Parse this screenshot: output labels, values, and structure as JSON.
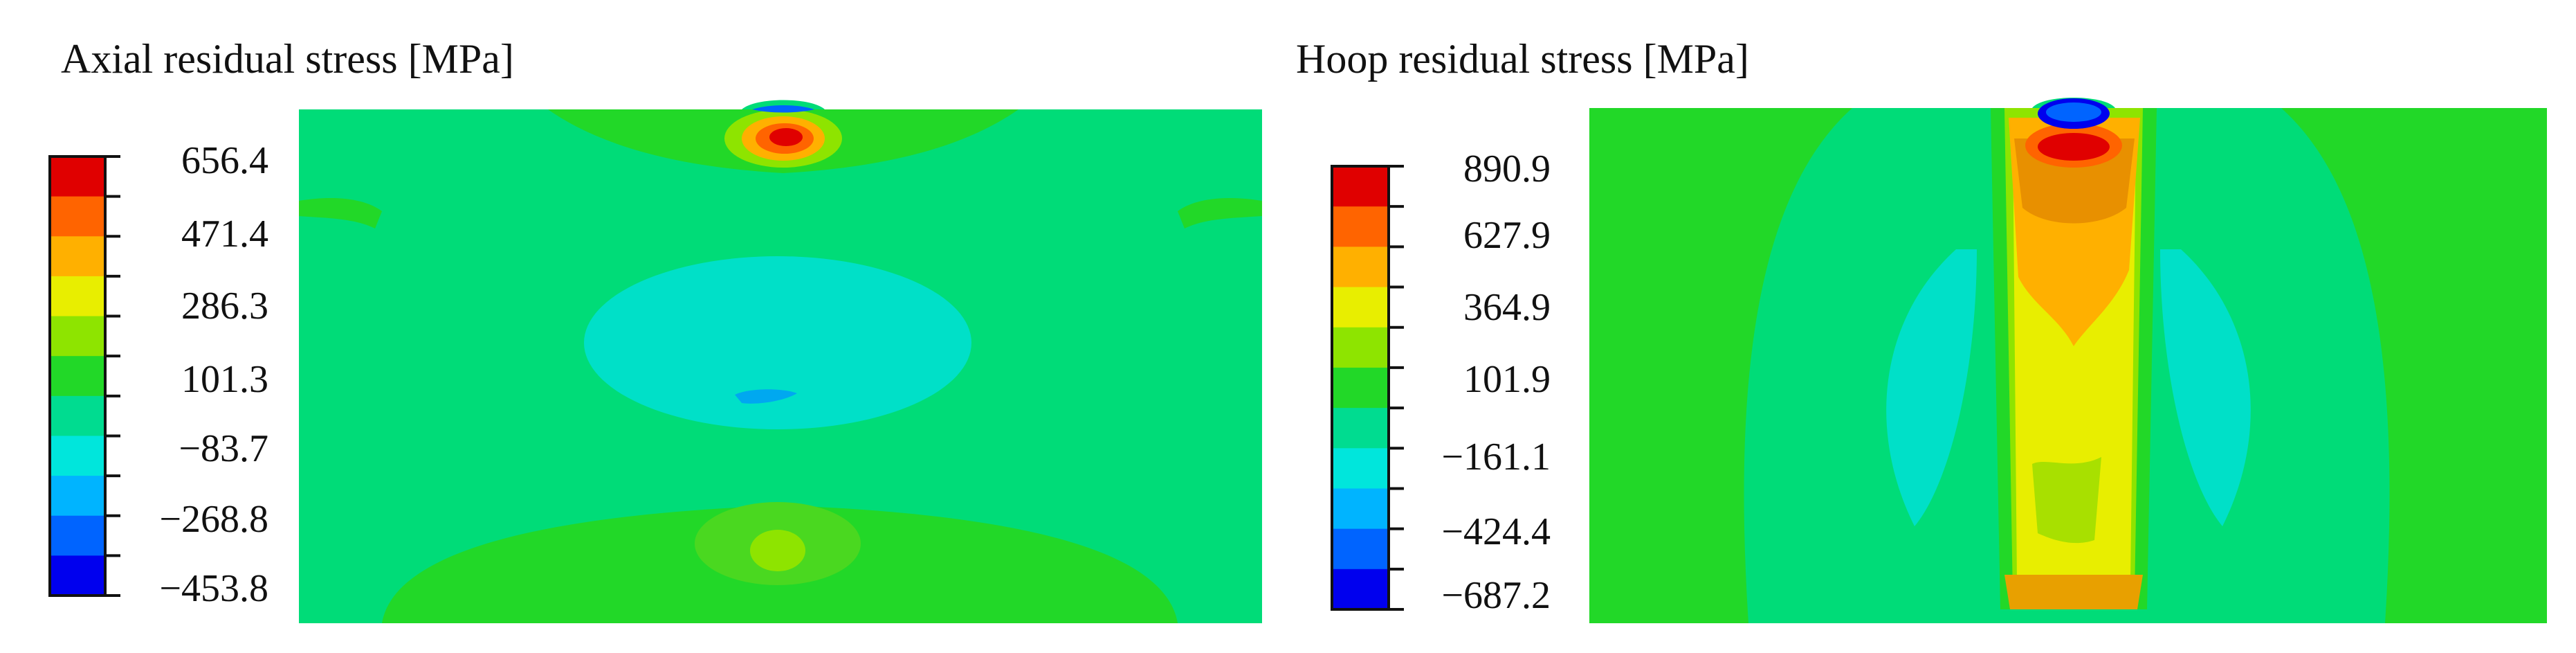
{
  "panels": [
    {
      "title": "Axial residual stress [MPa]",
      "legend_values": [
        "656.4",
        "471.4",
        "286.3",
        "101.3",
        "−83.7",
        "−268.8",
        "−453.8"
      ]
    },
    {
      "title": "Hoop residual stress [MPa]",
      "legend_values": [
        "890.9",
        "627.9",
        "364.9",
        "101.9",
        "−161.1",
        "−424.4",
        "−687.2"
      ]
    }
  ],
  "colormap": [
    "#e00000",
    "#ff6400",
    "#ffb000",
    "#e8ee00",
    "#8ee400",
    "#22d828",
    "#00dc90",
    "#00e6dc",
    "#00b4ff",
    "#0064ff",
    "#0000ee"
  ]
}
